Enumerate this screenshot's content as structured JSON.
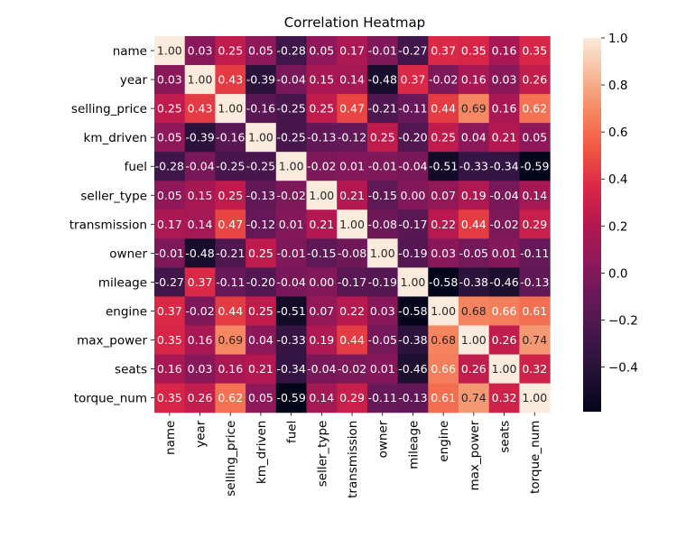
{
  "chart_data": {
    "type": "heatmap",
    "title": "Correlation Heatmap",
    "xlabel": "",
    "ylabel": "",
    "variables": [
      "name",
      "year",
      "selling_price",
      "km_driven",
      "fuel",
      "seller_type",
      "transmission",
      "owner",
      "mileage",
      "engine",
      "max_power",
      "seats",
      "torque_num"
    ],
    "values": [
      [
        1.0,
        0.03,
        0.25,
        0.05,
        -0.28,
        0.05,
        0.17,
        -0.01,
        -0.27,
        0.37,
        0.35,
        0.16,
        0.35
      ],
      [
        0.03,
        1.0,
        0.43,
        -0.39,
        -0.04,
        0.15,
        0.14,
        -0.48,
        0.37,
        -0.02,
        0.16,
        0.03,
        0.26
      ],
      [
        0.25,
        0.43,
        1.0,
        -0.16,
        -0.25,
        0.25,
        0.47,
        -0.21,
        -0.11,
        0.44,
        0.69,
        0.16,
        0.62
      ],
      [
        0.05,
        -0.39,
        -0.16,
        1.0,
        -0.25,
        -0.13,
        -0.12,
        0.25,
        -0.2,
        0.25,
        0.04,
        0.21,
        0.05
      ],
      [
        -0.28,
        -0.04,
        -0.25,
        -0.25,
        1.0,
        -0.02,
        0.01,
        -0.01,
        -0.04,
        -0.51,
        -0.33,
        -0.34,
        -0.59
      ],
      [
        0.05,
        0.15,
        0.25,
        -0.13,
        -0.02,
        1.0,
        0.21,
        -0.15,
        0.0,
        0.07,
        0.19,
        -0.04,
        0.14
      ],
      [
        0.17,
        0.14,
        0.47,
        -0.12,
        0.01,
        0.21,
        1.0,
        -0.08,
        -0.17,
        0.22,
        0.44,
        -0.02,
        0.29
      ],
      [
        -0.01,
        -0.48,
        -0.21,
        0.25,
        -0.01,
        -0.15,
        -0.08,
        1.0,
        -0.19,
        0.03,
        -0.05,
        0.01,
        -0.11
      ],
      [
        -0.27,
        0.37,
        -0.11,
        -0.2,
        -0.04,
        0.0,
        -0.17,
        -0.19,
        1.0,
        -0.58,
        -0.38,
        -0.46,
        -0.13
      ],
      [
        0.37,
        -0.02,
        0.44,
        0.25,
        -0.51,
        0.07,
        0.22,
        0.03,
        -0.58,
        1.0,
        0.68,
        0.66,
        0.61
      ],
      [
        0.35,
        0.16,
        0.69,
        0.04,
        -0.33,
        0.19,
        0.44,
        -0.05,
        -0.38,
        0.68,
        1.0,
        0.26,
        0.74
      ],
      [
        0.16,
        0.03,
        0.16,
        0.21,
        -0.34,
        -0.04,
        -0.02,
        0.01,
        -0.46,
        0.66,
        0.26,
        1.0,
        0.32
      ],
      [
        0.35,
        0.26,
        0.62,
        0.05,
        -0.59,
        0.14,
        0.29,
        -0.11,
        -0.13,
        0.61,
        0.74,
        0.32,
        1.0
      ]
    ],
    "value_format": "0.00",
    "colormap": "rocket",
    "colorbar": {
      "vmin": -0.59,
      "vmax": 1.0,
      "ticks": [
        -0.4,
        -0.2,
        0.0,
        0.2,
        0.4,
        0.6,
        0.8,
        1.0
      ],
      "tick_labels": [
        "−0.4",
        "−0.2",
        "0.0",
        "0.2",
        "0.4",
        "0.6",
        "0.8",
        "1.0"
      ]
    },
    "grid": false,
    "legend_placement": "right"
  }
}
